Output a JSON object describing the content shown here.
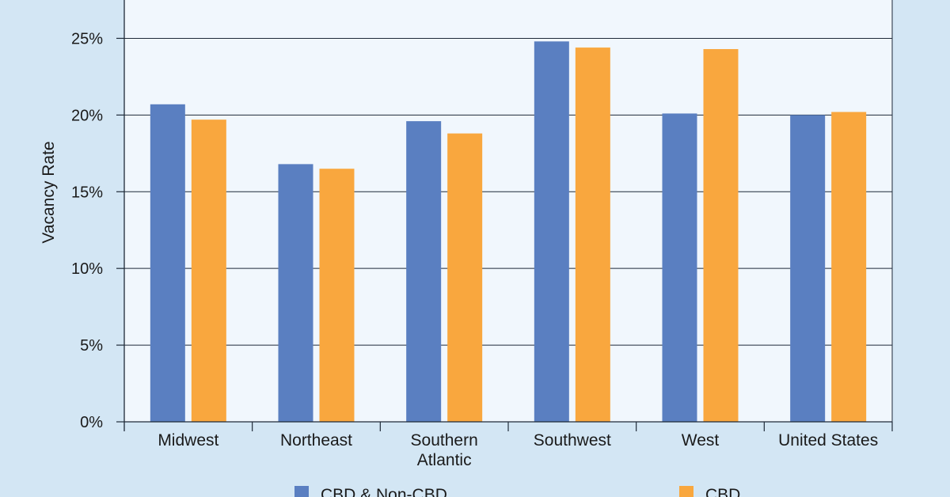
{
  "chart_data": {
    "type": "bar",
    "ylabel": "Vacancy Rate",
    "ylim": [
      0,
      27.5
    ],
    "yticks": [
      0,
      5,
      10,
      15,
      20,
      25
    ],
    "ytick_labels": [
      "0%",
      "5%",
      "10%",
      "15%",
      "20%",
      "25%"
    ],
    "categories": [
      [
        "Midwest"
      ],
      [
        "Northeast"
      ],
      [
        "Southern",
        "Atlantic"
      ],
      [
        "Southwest"
      ],
      [
        "West"
      ],
      [
        "United States"
      ]
    ],
    "series": [
      {
        "name": "CBD & Non-CBD",
        "color": "#5a7fc1",
        "values": [
          20.7,
          16.8,
          19.6,
          24.8,
          20.1,
          20.0
        ]
      },
      {
        "name": "CBD",
        "color": "#f9a73e",
        "values": [
          19.7,
          16.5,
          18.8,
          24.4,
          24.3,
          20.2
        ]
      }
    ],
    "grid": true,
    "legend_position": "bottom",
    "colors": {
      "page_background": "#d3e6f4",
      "plot_background": "#f1f7fd",
      "grid": "#1f2a38"
    }
  }
}
